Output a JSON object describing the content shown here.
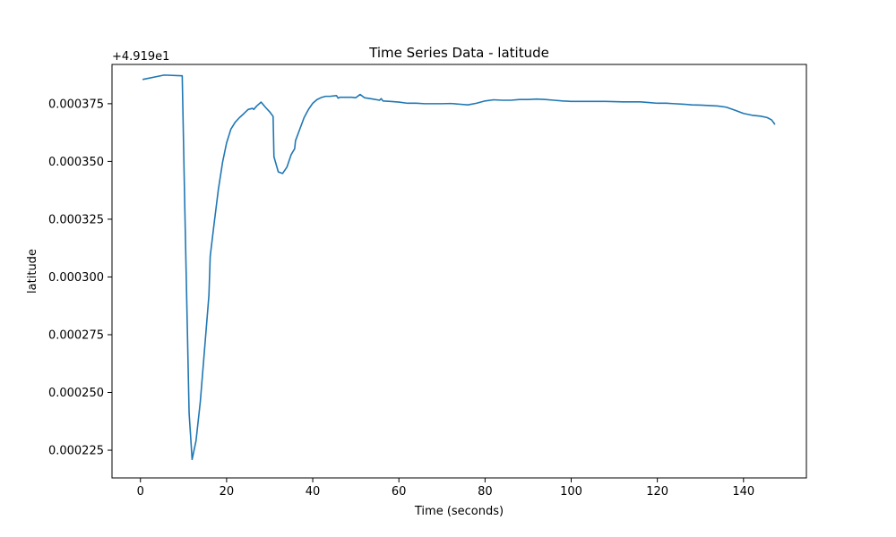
{
  "chart_data": {
    "type": "line",
    "title": "Time Series Data - latitude",
    "xlabel": "Time (seconds)",
    "ylabel": "latitude",
    "offset_label": "+4.919e1",
    "xlim": [
      -6.6,
      154.6
    ],
    "ylim": [
      0.000213,
      0.000392
    ],
    "x_ticks": [
      0,
      20,
      40,
      60,
      80,
      100,
      120,
      140
    ],
    "x_tick_labels": [
      "0",
      "20",
      "40",
      "60",
      "80",
      "100",
      "120",
      "140"
    ],
    "y_ticks": [
      0.000225,
      0.00025,
      0.000275,
      0.0003,
      0.000325,
      0.00035,
      0.000375
    ],
    "y_tick_labels": [
      "0.000225",
      "0.000250",
      "0.000275",
      "0.000300",
      "0.000325",
      "0.000350",
      "0.000375"
    ],
    "grid": false,
    "series": [
      {
        "color": "#1f77b4",
        "x": [
          0.5,
          5.5,
          9.7,
          10.3,
          11.3,
          12.0,
          12.9,
          13.9,
          14.9,
          15.9,
          16.2,
          17.1,
          18.1,
          19.1,
          20.0,
          21.0,
          22.0,
          23.0,
          24.0,
          25.0,
          26.0,
          26.3,
          27.0,
          28.0,
          29.0,
          30.0,
          30.8,
          31.0,
          32.0,
          33.0,
          34.0,
          35.0,
          35.8,
          36.0,
          37.0,
          38.0,
          39.0,
          40.0,
          41.0,
          42.0,
          43.0,
          44.0,
          45.5,
          45.9,
          46.3,
          47.0,
          48.0,
          49.0,
          50.0,
          51.0,
          52.0,
          54.0,
          55.5,
          55.9,
          56.3,
          58.0,
          60.0,
          62.0,
          64.0,
          66.0,
          68.0,
          70.0,
          72.0,
          74.0,
          76.0,
          78.0,
          80.0,
          82.0,
          84.0,
          86.0,
          88.0,
          90.0,
          92.0,
          94.0,
          96.0,
          98.0,
          100.0,
          104.0,
          108.0,
          112.0,
          116.0,
          118.0,
          120.0,
          122.0,
          124.0,
          126.0,
          128.0,
          130.0,
          132.0,
          134.0,
          136.0,
          138.0,
          140.0,
          142.0,
          144.0,
          145.5,
          146.5,
          147.0,
          147.3
        ],
        "y": [
          0.0003855,
          0.0003874,
          0.0003871,
          0.00033,
          0.000241,
          0.000221,
          0.000229,
          0.000246,
          0.000269,
          0.000292,
          0.000309,
          0.000323,
          0.000338,
          0.00035,
          0.000358,
          0.000364,
          0.000367,
          0.000369,
          0.0003707,
          0.0003725,
          0.000373,
          0.0003725,
          0.000374,
          0.0003757,
          0.0003735,
          0.0003715,
          0.0003695,
          0.000352,
          0.0003455,
          0.0003448,
          0.0003475,
          0.000353,
          0.0003555,
          0.000359,
          0.000364,
          0.000369,
          0.0003725,
          0.0003752,
          0.0003768,
          0.0003777,
          0.0003782,
          0.0003782,
          0.0003785,
          0.0003774,
          0.0003778,
          0.0003778,
          0.0003778,
          0.0003778,
          0.0003776,
          0.000379,
          0.0003776,
          0.000377,
          0.0003765,
          0.0003772,
          0.0003762,
          0.000376,
          0.0003757,
          0.0003752,
          0.0003752,
          0.000375,
          0.000375,
          0.000375,
          0.0003751,
          0.0003748,
          0.0003745,
          0.0003752,
          0.0003762,
          0.0003767,
          0.0003765,
          0.0003765,
          0.0003768,
          0.0003768,
          0.000377,
          0.0003768,
          0.0003765,
          0.0003762,
          0.000376,
          0.000376,
          0.000376,
          0.0003758,
          0.0003758,
          0.0003755,
          0.0003752,
          0.0003752,
          0.000375,
          0.0003748,
          0.0003745,
          0.0003744,
          0.0003742,
          0.000374,
          0.0003735,
          0.0003722,
          0.0003708,
          0.00037,
          0.0003696,
          0.000369,
          0.000368,
          0.0003668,
          0.000366
        ]
      }
    ]
  }
}
